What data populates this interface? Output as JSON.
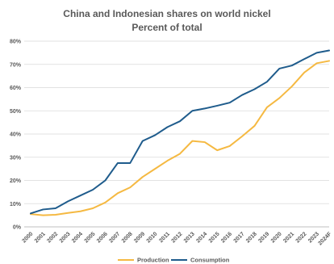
{
  "chart_data": {
    "type": "line",
    "title": "China and Indonesian shares on world nickel",
    "subtitle": "Percent of total",
    "x": [
      "2000",
      "2001",
      "2002",
      "2003",
      "2004",
      "2005",
      "2006",
      "2007",
      "2008",
      "2009",
      "2010",
      "2011",
      "2012",
      "2013",
      "2014",
      "2015",
      "2016",
      "2017",
      "2018",
      "2019",
      "2020",
      "2021",
      "2022",
      "2023",
      "2024F"
    ],
    "y_ticks": [
      "0%",
      "10%",
      "20%",
      "30%",
      "40%",
      "50%",
      "60%",
      "70%",
      "80%"
    ],
    "ylim": [
      0,
      80
    ],
    "grid": true,
    "legend_position": "bottom",
    "series": [
      {
        "name": "Production",
        "color": "#F5B942",
        "values": [
          5.5,
          5.0,
          5.2,
          6.0,
          6.7,
          8.0,
          10.5,
          14.5,
          17.0,
          21.5,
          25.0,
          28.5,
          31.5,
          37.0,
          36.5,
          33.0,
          34.8,
          39.0,
          43.5,
          51.5,
          55.5,
          60.5,
          66.5,
          70.5,
          71.5
        ]
      },
      {
        "name": "Consumption",
        "color": "#1F5C8C",
        "values": [
          5.8,
          7.5,
          8.0,
          11.0,
          13.5,
          16.0,
          20.0,
          27.5,
          27.5,
          37.0,
          39.5,
          43.0,
          45.5,
          50.0,
          51.0,
          52.2,
          53.5,
          56.8,
          59.3,
          62.5,
          68.2,
          69.5,
          72.3,
          75.0,
          76.0
        ]
      }
    ]
  }
}
